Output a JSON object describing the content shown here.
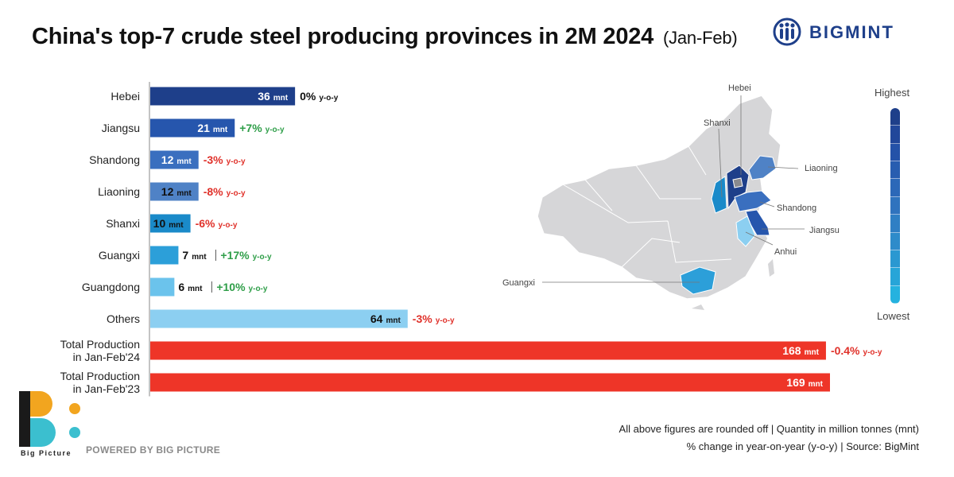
{
  "header": {
    "title": "China's top-7 crude steel producing provinces in 2M 2024",
    "subtitle": "(Jan-Feb)"
  },
  "brand": {
    "name": "BIGMINT",
    "color": "#1e3f8a"
  },
  "chart_data": {
    "type": "bar",
    "orientation": "horizontal",
    "unit": "mnt",
    "yoy_suffix": "y-o-y",
    "categories": [
      "Hebei",
      "Jiangsu",
      "Shandong",
      "Liaoning",
      "Shanxi",
      "Guangxi",
      "Guangdong",
      "Others",
      "Total Production in Jan-Feb'24",
      "Total Production in Jan-Feb'23"
    ],
    "label_lines": [
      [
        "Hebei"
      ],
      [
        "Jiangsu"
      ],
      [
        "Shandong"
      ],
      [
        "Liaoning"
      ],
      [
        "Shanxi"
      ],
      [
        "Guangxi"
      ],
      [
        "Guangdong"
      ],
      [
        "Others"
      ],
      [
        "Total Production",
        "in Jan-Feb'24"
      ],
      [
        "Total Production",
        "in Jan-Feb'23"
      ]
    ],
    "values": [
      36,
      21,
      12,
      12,
      10,
      7,
      6,
      64,
      168,
      169
    ],
    "yoy": [
      "0%",
      "+7%",
      "-3%",
      "-8%",
      "-6%",
      "+17%",
      "+10%",
      "-3%",
      "-0.4%",
      null
    ],
    "yoy_direction": [
      "neutral",
      "up",
      "down",
      "down",
      "down",
      "up",
      "up",
      "down",
      "down",
      null
    ],
    "bar_colors": [
      "#1e3f8a",
      "#2656ad",
      "#3a6fbf",
      "#4f82c6",
      "#1a8ac9",
      "#2c9fd9",
      "#6bc3ec",
      "#8ccff1",
      "#ee3528",
      "#ee3528"
    ],
    "yoy_colors": {
      "neutral": "#111111",
      "up": "#2e9e48",
      "down": "#e0312a"
    },
    "xlim": [
      0,
      169
    ],
    "grid": false
  },
  "map": {
    "labels": [
      "Hebei",
      "Shanxi",
      "Liaoning",
      "Shandong",
      "Jiangsu",
      "Anhui",
      "Guangxi"
    ],
    "legend_high": "Highest",
    "legend_low": "Lowest",
    "legend_colors": [
      "#1e3f8a",
      "#21479a",
      "#2452a8",
      "#285db0",
      "#2c68b8",
      "#2f73be",
      "#2f7fc4",
      "#2e8bca",
      "#2a98d1",
      "#27a5d8",
      "#25b2df"
    ]
  },
  "footer": {
    "note1": "All above figures are rounded off | Quantity in million tonnes (mnt)",
    "note2": "% change in year-on-year (y-o-y) | Source: BigMint",
    "bp_name": "Big Picture",
    "powered": "POWERED BY BIG PICTURE"
  }
}
